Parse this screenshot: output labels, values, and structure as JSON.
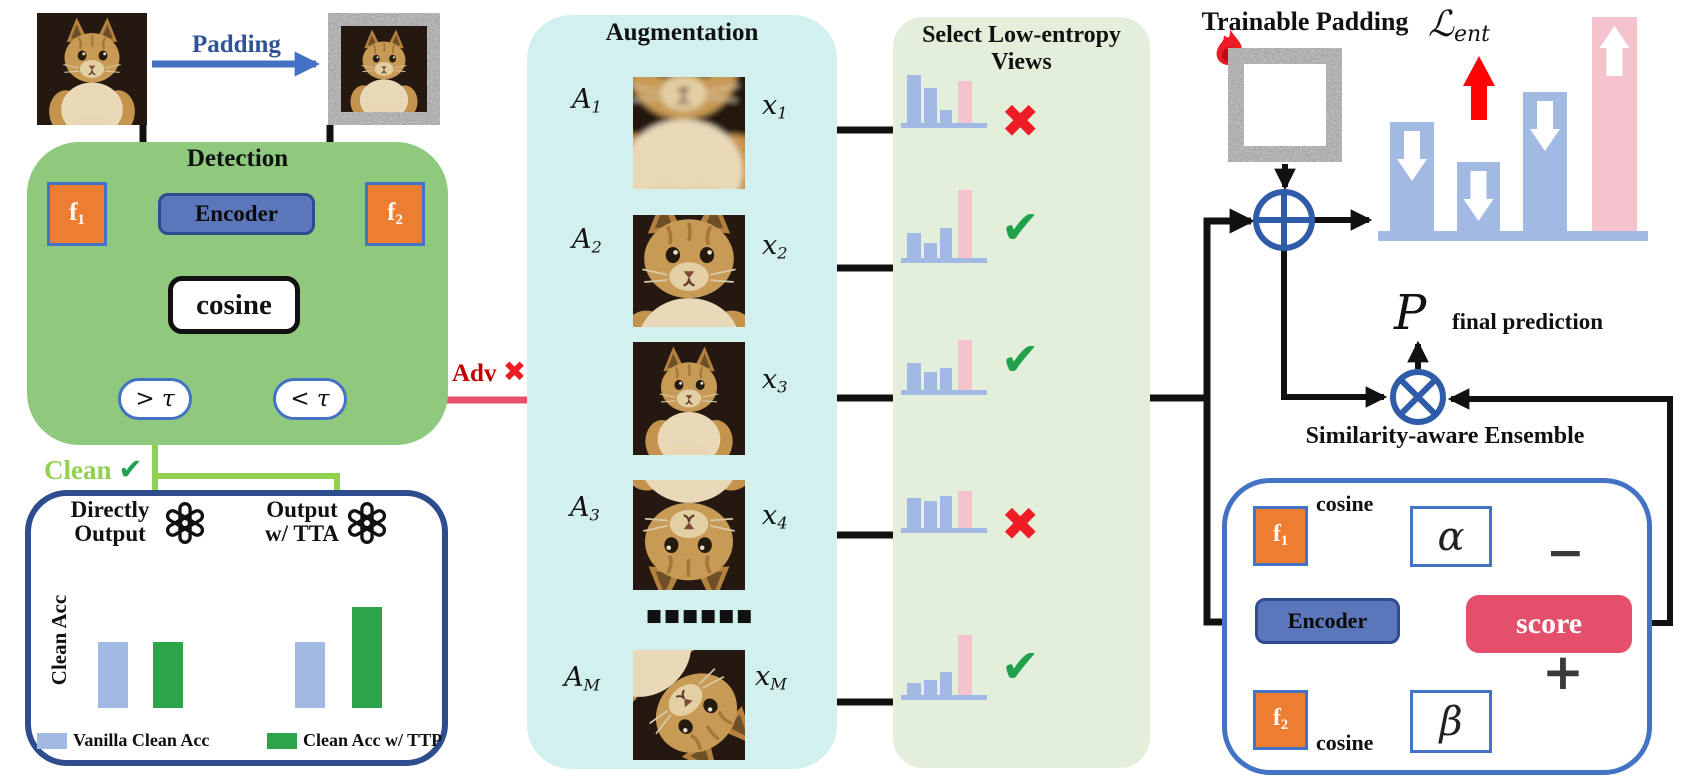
{
  "colors": {
    "accent_blue": "#2f5496",
    "arrow_blue": "#4472c4",
    "node_orange": "#ed7d31",
    "node_blue": "#5b76bb",
    "dark_navy": "#2e4d8f",
    "detection_green": "#8fc97e",
    "augmentation_cyan": "#d2f0ee",
    "select_green": "#e4efdb",
    "bar_blue": "#a2b9e3",
    "bar_pink": "#f5c3cd",
    "acc_green": "#2ca44a",
    "clean_green": "#92d050",
    "check_green": "#21a14b",
    "cross_red": "#ee1c25",
    "adv_red": "#e8506a",
    "adv_text_red": "#c00000",
    "score_red": "#e4506b",
    "circuit_blue": "#2e5ca8"
  },
  "top_left": {
    "padding_label": "Padding"
  },
  "detection": {
    "title": "Detection",
    "f1_main": "f",
    "f1_sub": "1",
    "f2_main": "f",
    "f2_sub": "2",
    "encoder": "Encoder",
    "cosine": "cosine",
    "gt_tau": "> τ",
    "lt_tau": "< τ"
  },
  "branch": {
    "clean_label": "Clean",
    "clean_check": "✔",
    "adv_label": "Adv",
    "adv_cross": "✖"
  },
  "output_box": {
    "left_title_line1": "Directly",
    "left_title_line2": "Output",
    "right_title_line1": "Output",
    "right_title_line2": "w/ TTA",
    "ylabel": "Clean Acc",
    "legend": [
      {
        "label": "Vanilla Clean Acc"
      },
      {
        "label": "Clean Acc w/ TTP"
      }
    ]
  },
  "augmentation": {
    "title": "Augmentation",
    "dots": "■■■■■■",
    "rows": [
      {
        "a_main": "A",
        "a_sub": "1",
        "x_main": "x",
        "x_sub": "1"
      },
      {
        "a_main": "A",
        "a_sub": "2",
        "x_main": "x",
        "x_sub": "2"
      },
      {
        "a_main": "",
        "a_sub": "",
        "x_main": "x",
        "x_sub": "3"
      },
      {
        "a_main": "A",
        "a_sub": "3",
        "x_main": "x",
        "x_sub": "4"
      },
      {
        "a_main": "A",
        "a_sub": "M",
        "x_main": "x",
        "x_sub": "M"
      }
    ]
  },
  "select_panel": {
    "title_line1": "Select Low-entropy",
    "title_line2": "Views"
  },
  "trainable_padding": {
    "title": "Trainable Padding"
  },
  "entropy_loss": {
    "main": "ℒ",
    "sub": "ent"
  },
  "prediction": {
    "symbol": "P",
    "caption": "final prediction"
  },
  "ensemble": {
    "caption": "Similarity-aware Ensemble",
    "f1_main": "f",
    "f1_sub": "1",
    "f2_main": "f",
    "f2_sub": "2",
    "cosine_top": "cosine",
    "cosine_bottom": "cosine",
    "encoder": "Encoder",
    "alpha": "α",
    "beta": "β",
    "score": "score",
    "minus_sign": "−",
    "plus_sign": "+"
  },
  "chart_data": [
    {
      "id": "entropy_view_x1",
      "type": "bar",
      "values": [
        48,
        35,
        13,
        42
      ],
      "bar_colors": [
        "blue",
        "blue",
        "blue",
        "pink"
      ],
      "selected": false,
      "mark": "✖"
    },
    {
      "id": "entropy_view_x2",
      "type": "bar",
      "values": [
        25,
        15,
        30,
        68
      ],
      "bar_colors": [
        "blue",
        "blue",
        "blue",
        "pink"
      ],
      "selected": true,
      "mark": "✔"
    },
    {
      "id": "entropy_view_x3",
      "type": "bar",
      "values": [
        27,
        18,
        22,
        50
      ],
      "bar_colors": [
        "blue",
        "blue",
        "blue",
        "pink"
      ],
      "selected": true,
      "mark": "✔"
    },
    {
      "id": "entropy_view_x4",
      "type": "bar",
      "values": [
        30,
        27,
        32,
        37
      ],
      "bar_colors": [
        "blue",
        "blue",
        "blue",
        "pink"
      ],
      "selected": false,
      "mark": "✖"
    },
    {
      "id": "entropy_view_xM",
      "type": "bar",
      "values": [
        12,
        15,
        23,
        60
      ],
      "bar_colors": [
        "blue",
        "blue",
        "blue",
        "pink"
      ],
      "selected": true,
      "mark": "✔"
    },
    {
      "id": "aggregated_logits",
      "type": "bar",
      "values": [
        109,
        69,
        139,
        214
      ],
      "bar_colors": [
        "blue",
        "blue",
        "blue",
        "pink"
      ],
      "bar_arrows": [
        "down",
        "down",
        "down",
        "up"
      ]
    },
    {
      "id": "clean_acc_directly_output",
      "type": "bar",
      "ylabel": "Clean Acc",
      "categories": [
        "Vanilla Clean Acc",
        "Clean Acc w/ TTP"
      ],
      "values": [
        66,
        66
      ],
      "dashed_baseline": 66
    },
    {
      "id": "clean_acc_with_tta",
      "type": "bar",
      "ylabel": "Clean Acc",
      "categories": [
        "Vanilla Clean Acc",
        "Clean Acc w/ TTP"
      ],
      "values": [
        66,
        101
      ],
      "dashed_baseline": 66
    }
  ]
}
